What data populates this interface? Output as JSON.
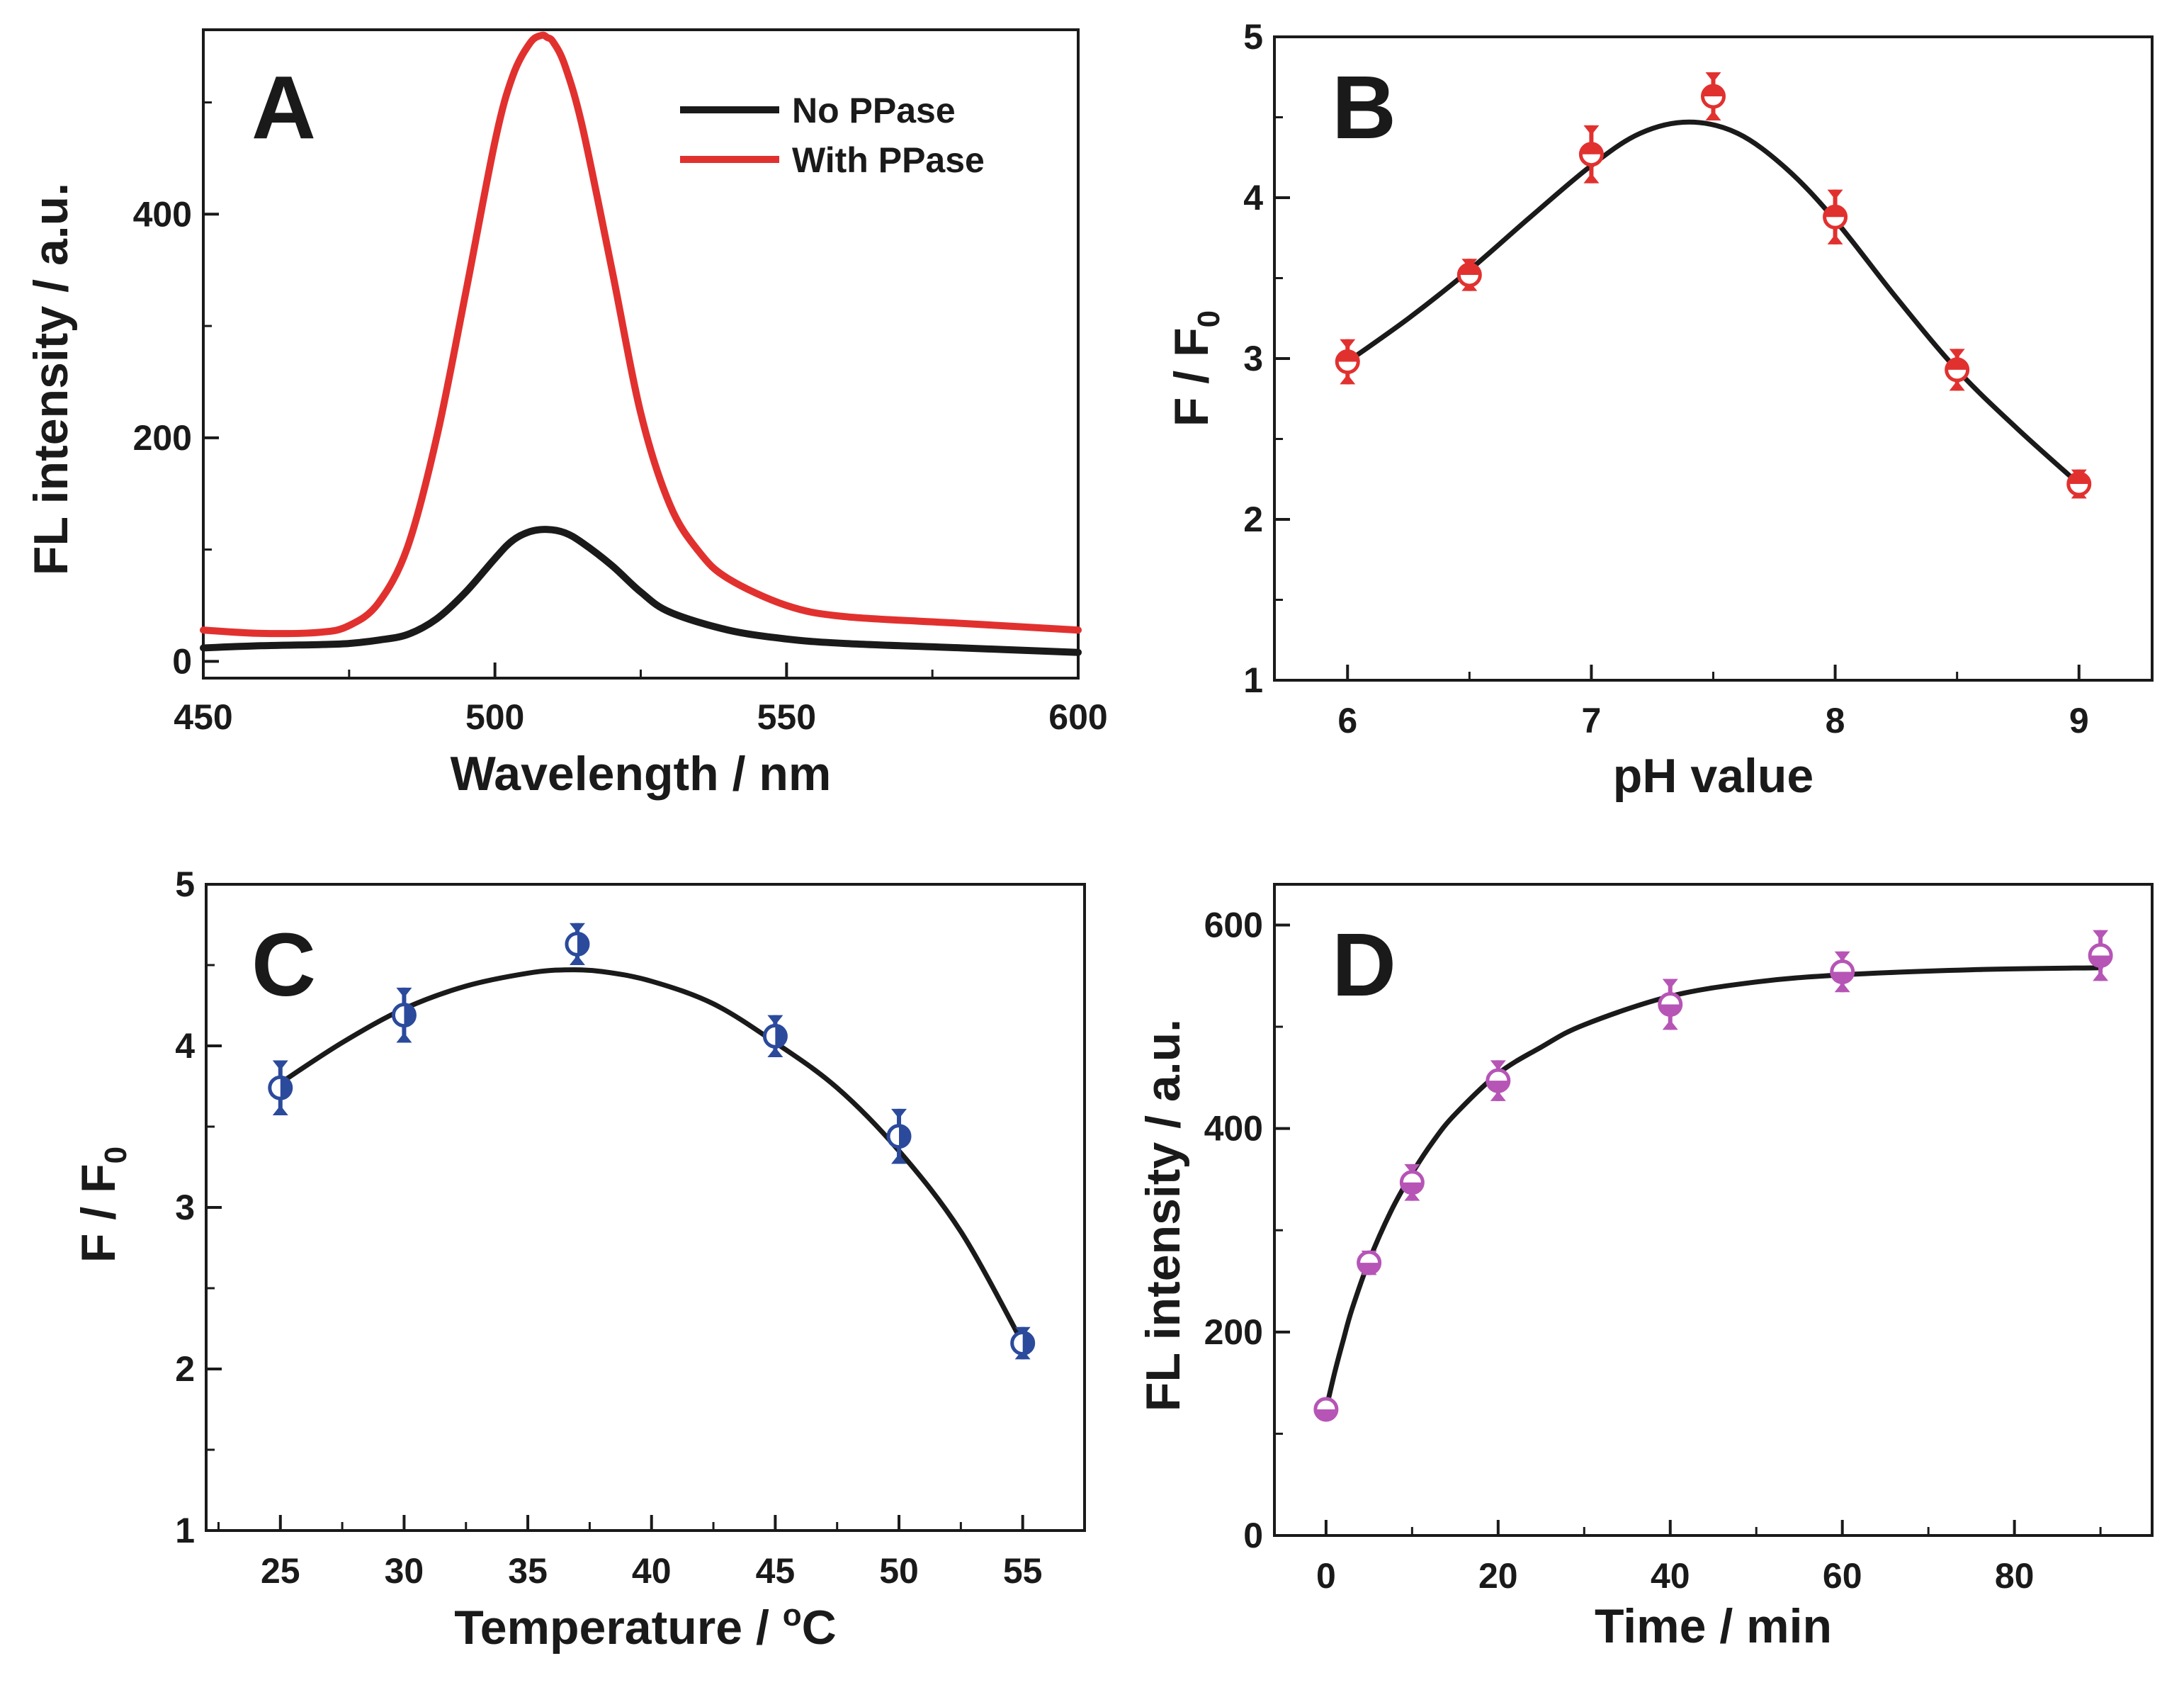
{
  "chart_data": [
    {
      "panel": "A",
      "type": "line",
      "xlabel": "Wavelength / nm",
      "ylabel": "FL intensity / a.u.",
      "xlim": [
        450,
        600
      ],
      "ylim": [
        -15,
        565
      ],
      "xticks": [
        "450",
        "500",
        "550",
        "600"
      ],
      "yticks": [
        "0",
        "200",
        "400"
      ],
      "legend": {
        "position": "top-right"
      },
      "series": [
        {
          "name": "No PPase",
          "color": "#1a1a1a",
          "x": [
            450,
            460,
            470,
            475,
            480,
            485,
            490,
            495,
            500,
            503,
            506,
            509,
            512,
            515,
            520,
            525,
            530,
            540,
            550,
            560,
            580,
            600
          ],
          "values": [
            12,
            14,
            15,
            16,
            19,
            24,
            38,
            62,
            92,
            108,
            116,
            118,
            115,
            106,
            86,
            62,
            44,
            28,
            20,
            16,
            12,
            8
          ]
        },
        {
          "name": "With PPase",
          "color": "#e1312f",
          "x": [
            450,
            460,
            470,
            475,
            480,
            485,
            490,
            495,
            500,
            503,
            506,
            508,
            509,
            510,
            512,
            515,
            520,
            525,
            530,
            535,
            540,
            550,
            560,
            580,
            600
          ],
          "values": [
            28,
            25,
            26,
            32,
            52,
            102,
            200,
            330,
            465,
            523,
            553,
            560,
            558,
            554,
            533,
            478,
            352,
            222,
            140,
            98,
            74,
            50,
            40,
            34,
            28
          ]
        }
      ]
    },
    {
      "panel": "B",
      "type": "scatter",
      "xlabel": "pH value",
      "ylabel": "F / F",
      "ylabel_sub": "0",
      "xlim": [
        5.7,
        9.3
      ],
      "ylim": [
        1,
        5
      ],
      "xticks": [
        "6",
        "7",
        "8",
        "9"
      ],
      "yticks": [
        "1",
        "2",
        "3",
        "4",
        "5"
      ],
      "marker_color": "#e1312f",
      "points": [
        {
          "x": 6,
          "y": 2.98,
          "err": 0.14
        },
        {
          "x": 6.5,
          "y": 3.52,
          "err": 0.1
        },
        {
          "x": 7,
          "y": 4.27,
          "err": 0.18
        },
        {
          "x": 7.5,
          "y": 4.63,
          "err": 0.15
        },
        {
          "x": 8,
          "y": 3.88,
          "err": 0.17
        },
        {
          "x": 8.5,
          "y": 2.93,
          "err": 0.13
        },
        {
          "x": 9,
          "y": 2.22,
          "err": 0.09
        }
      ],
      "fit": {
        "x": [
          6,
          6.25,
          6.5,
          6.75,
          7,
          7.2,
          7.4,
          7.6,
          7.8,
          8,
          8.25,
          8.5,
          8.75,
          9
        ],
        "y": [
          2.98,
          3.25,
          3.55,
          3.88,
          4.2,
          4.4,
          4.47,
          4.4,
          4.18,
          3.86,
          3.38,
          2.93,
          2.56,
          2.22
        ]
      }
    },
    {
      "panel": "C",
      "type": "scatter",
      "xlabel": "Temperature / ",
      "xlabel_sup": "o",
      "xlabel_tail": "C",
      "ylabel": "F / F",
      "ylabel_sub": "0",
      "xlim": [
        22,
        57.5
      ],
      "ylim": [
        1,
        5
      ],
      "xticks": [
        "25",
        "30",
        "35",
        "40",
        "45",
        "50",
        "55"
      ],
      "yticks": [
        "1",
        "2",
        "3",
        "4",
        "5"
      ],
      "marker_color": "#2b4a9c",
      "points": [
        {
          "x": 25,
          "y": 3.74,
          "err": 0.17
        },
        {
          "x": 30,
          "y": 4.19,
          "err": 0.17
        },
        {
          "x": 37,
          "y": 4.63,
          "err": 0.13
        },
        {
          "x": 45,
          "y": 4.06,
          "err": 0.13
        },
        {
          "x": 50,
          "y": 3.44,
          "err": 0.17
        },
        {
          "x": 55,
          "y": 2.16,
          "err": 0.1
        }
      ],
      "fit": {
        "x": [
          25,
          27.5,
          30,
          32.5,
          35,
          36.5,
          38,
          40,
          42.5,
          45,
          47.5,
          50,
          52.5,
          55
        ],
        "y": [
          3.77,
          4.02,
          4.23,
          4.37,
          4.45,
          4.47,
          4.46,
          4.4,
          4.26,
          4.02,
          3.74,
          3.35,
          2.85,
          2.16
        ]
      }
    },
    {
      "panel": "D",
      "type": "scatter",
      "xlabel": "Time / min",
      "ylabel": "FL intensity / a.u.",
      "xlim": [
        -6,
        96
      ],
      "ylim": [
        0,
        640
      ],
      "xticks": [
        "0",
        "20",
        "40",
        "60",
        "80"
      ],
      "yticks": [
        "0",
        "200",
        "400",
        "600"
      ],
      "marker_color": "#b655b6",
      "points": [
        {
          "x": 0,
          "y": 124,
          "err": 8
        },
        {
          "x": 5,
          "y": 268,
          "err": 12
        },
        {
          "x": 10,
          "y": 347,
          "err": 18
        },
        {
          "x": 20,
          "y": 447,
          "err": 20
        },
        {
          "x": 40,
          "y": 522,
          "err": 25
        },
        {
          "x": 60,
          "y": 554,
          "err": 20
        },
        {
          "x": 90,
          "y": 570,
          "err": 25
        }
      ],
      "fit": {
        "x": [
          0,
          1,
          2,
          3,
          5,
          7.5,
          10,
          12.5,
          15,
          20,
          25,
          30,
          40,
          50,
          60,
          75,
          90
        ],
        "y": [
          124,
          160,
          192,
          222,
          270,
          318,
          356,
          388,
          414,
          454,
          480,
          502,
          530,
          544,
          551,
          556,
          558
        ]
      }
    }
  ]
}
